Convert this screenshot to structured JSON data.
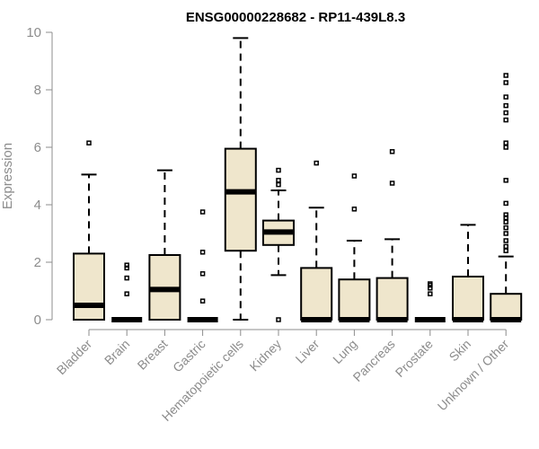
{
  "chart_data": {
    "type": "boxplot",
    "title": "ENSG00000228682 - RP11-439L8.3",
    "xlabel": "",
    "ylabel": "Expression",
    "ylim": [
      0,
      10
    ],
    "yticks": [
      "0",
      "2",
      "4",
      "6",
      "8",
      "10"
    ],
    "grid": false,
    "colors": {
      "box_fill": "#efe6cc",
      "stroke": "#000000",
      "axis": "#8c8c8c"
    },
    "categories": [
      "Bladder",
      "Brain",
      "Breast",
      "Gastric",
      "Hematopoietic cells",
      "Kidney",
      "Liver",
      "Lung",
      "Pancreas",
      "Prostate",
      "Skin",
      "Unknown / Other"
    ],
    "boxes": [
      {
        "q1": 0,
        "median": 0.5,
        "q3": 2.3,
        "whisker_low": 0,
        "whisker_high": 5.05,
        "outliers": [
          6.15
        ]
      },
      {
        "q1": 0,
        "median": 0,
        "q3": 0,
        "whisker_low": 0,
        "whisker_high": 0,
        "outliers": [
          0.9,
          1.45,
          1.8,
          1.9
        ]
      },
      {
        "q1": 0,
        "median": 1.05,
        "q3": 2.25,
        "whisker_low": 0,
        "whisker_high": 5.2,
        "outliers": []
      },
      {
        "q1": 0,
        "median": 0,
        "q3": 0,
        "whisker_low": 0,
        "whisker_high": 0,
        "outliers": [
          0.65,
          1.6,
          2.35,
          3.75
        ]
      },
      {
        "q1": 2.4,
        "median": 4.45,
        "q3": 5.95,
        "whisker_low": 0,
        "whisker_high": 9.8,
        "outliers": []
      },
      {
        "q1": 2.6,
        "median": 3.05,
        "q3": 3.45,
        "whisker_low": 1.55,
        "whisker_high": 4.5,
        "outliers": [
          0,
          4.7,
          4.85,
          5.2
        ]
      },
      {
        "q1": 0,
        "median": 0,
        "q3": 1.8,
        "whisker_low": 0,
        "whisker_high": 3.9,
        "outliers": [
          5.45
        ]
      },
      {
        "q1": 0,
        "median": 0,
        "q3": 1.4,
        "whisker_low": 0,
        "whisker_high": 2.75,
        "outliers": [
          3.85,
          5.0
        ]
      },
      {
        "q1": 0,
        "median": 0,
        "q3": 1.45,
        "whisker_low": 0,
        "whisker_high": 2.8,
        "outliers": [
          4.75,
          5.85
        ]
      },
      {
        "q1": 0,
        "median": 0,
        "q3": 0,
        "whisker_low": 0,
        "whisker_high": 0,
        "outliers": [
          0.9,
          1.1,
          1.2,
          1.25
        ]
      },
      {
        "q1": 0,
        "median": 0,
        "q3": 1.5,
        "whisker_low": 0,
        "whisker_high": 3.3,
        "outliers": []
      },
      {
        "q1": 0,
        "median": 0,
        "q3": 0.9,
        "whisker_low": 0,
        "whisker_high": 2.2,
        "outliers": [
          2.4,
          2.55,
          2.75,
          3.0,
          3.2,
          3.4,
          3.55,
          3.65,
          4.05,
          4.85,
          6.0,
          6.15,
          6.95,
          7.2,
          7.45,
          7.75,
          8.25,
          8.5
        ]
      }
    ]
  }
}
